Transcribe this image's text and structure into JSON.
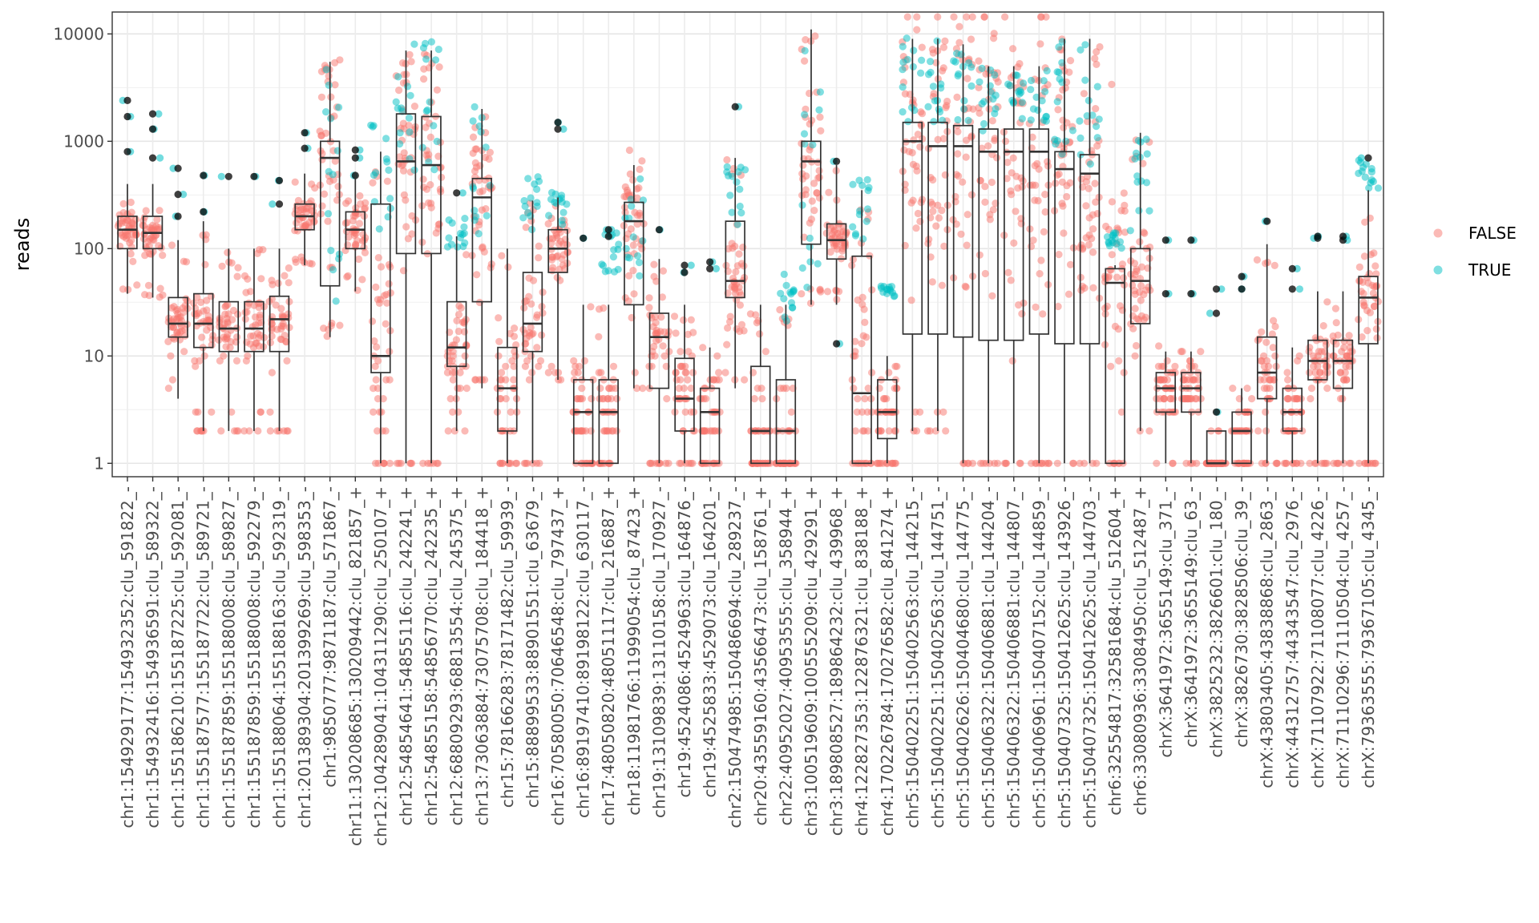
{
  "chart_data": {
    "type": "boxplot-jitter",
    "ylabel": "reads",
    "xlabel": "",
    "yscale": "log10",
    "ylim": [
      0.75,
      16000
    ],
    "yticks": [
      1,
      10,
      100,
      1000,
      10000
    ],
    "ytick_labels": [
      "1",
      "10",
      "100",
      "1000",
      "10000"
    ],
    "legend": {
      "placement": "right",
      "entries": [
        {
          "label": "FALSE",
          "color": "#F8766D"
        },
        {
          "label": "TRUE",
          "color": "#00BFC4"
        }
      ]
    },
    "grid": true,
    "categories": [
      {
        "label": "chr1:154929177:154932352:clu_591822_-",
        "box": [
          100,
          150,
          200,
          38,
          400
        ],
        "true_range": null,
        "outliers_true": [
          800,
          1700,
          2400
        ]
      },
      {
        "label": "chr1:154932416:154936591:clu_589322_-",
        "box": [
          100,
          140,
          200,
          35,
          400
        ],
        "true_range": null,
        "outliers_true": [
          700,
          1300,
          1800
        ]
      },
      {
        "label": "chr1:155186210:155187225:clu_592081_-",
        "box": [
          15,
          20,
          35,
          4,
          120
        ],
        "true_range": null,
        "outliers_true": [
          200,
          320,
          560
        ]
      },
      {
        "label": "chr1:155187577:155187722:clu_589721_-",
        "box": [
          12,
          20,
          38,
          2,
          180
        ],
        "true_range": null,
        "outliers_true": [
          220,
          480
        ]
      },
      {
        "label": "chr1:155187859:155188008:clu_589827_-",
        "box": [
          11,
          18,
          32,
          2,
          100
        ],
        "true_range": null,
        "outliers_true": [
          470
        ]
      },
      {
        "label": "chr1:155187859:155188008:clu_592279_-",
        "box": [
          11,
          18,
          32,
          2,
          100
        ],
        "true_range": null,
        "outliers_true": [
          470
        ]
      },
      {
        "label": "chr1:155188064:155188163:clu_592319_-",
        "box": [
          11,
          22,
          36,
          2,
          100
        ],
        "true_range": null,
        "outliers_true": [
          260,
          430
        ]
      },
      {
        "label": "chr1:201389304:201399269:clu_598353_-",
        "box": [
          150,
          200,
          260,
          70,
          500
        ],
        "true_range": null,
        "outliers_true": [
          860,
          1200
        ]
      },
      {
        "label": "chr1:9850777:9871187:clu_571867_-",
        "box": [
          45,
          700,
          1000,
          15,
          5500
        ],
        "true_range": [
          30,
          6000
        ],
        "outliers_true": []
      },
      {
        "label": "chr11:130208685:130209442:clu_821857_+",
        "box": [
          100,
          150,
          220,
          40,
          520
        ],
        "true_range": null,
        "outliers_true": [
          480,
          700,
          830
        ]
      },
      {
        "label": "chr12:104289041:104311290:clu_250107_+",
        "box": [
          7,
          10,
          260,
          1,
          800
        ],
        "true_range": [
          150,
          1500
        ],
        "outliers_true": []
      },
      {
        "label": "chr12:54854641:54855116:clu_242241_+",
        "box": [
          90,
          650,
          1800,
          1,
          7000
        ],
        "true_range": [
          500,
          10000
        ],
        "outliers_true": []
      },
      {
        "label": "chr12:54855158:54856770:clu_242235_+",
        "box": [
          90,
          600,
          1700,
          1,
          7000
        ],
        "true_range": [
          500,
          10000
        ],
        "outliers_true": []
      },
      {
        "label": "chr12:68809293:68813554:clu_245375_+",
        "box": [
          8,
          12,
          32,
          2,
          130
        ],
        "true_range": [
          100,
          210
        ],
        "outliers_true": [
          330
        ]
      },
      {
        "label": "chr13:73063884:73075708:clu_184418_+",
        "box": [
          32,
          300,
          450,
          5,
          2000
        ],
        "true_range": [
          100,
          2500
        ],
        "outliers_true": []
      },
      {
        "label": "chr15:78166283:78171482:clu_59939_-",
        "box": [
          2,
          5,
          12,
          1,
          100
        ],
        "true_range": null,
        "outliers_true": []
      },
      {
        "label": "chr15:88899533:88901551:clu_63679_-",
        "box": [
          11,
          20,
          60,
          1,
          280
        ],
        "true_range": [
          150,
          500
        ],
        "outliers_true": []
      },
      {
        "label": "chr16:70580050:70646548:clu_797437_+",
        "box": [
          60,
          100,
          150,
          6,
          300
        ],
        "true_range": [
          150,
          350
        ],
        "outliers_true": [
          1300,
          1500
        ]
      },
      {
        "label": "chr16:89197410:89198122:clu_630117_-",
        "box": [
          1,
          3,
          6,
          1,
          30
        ],
        "true_range": null,
        "outliers_true": [
          125
        ]
      },
      {
        "label": "chr17:48050820:48051117:clu_216887_+",
        "box": [
          1,
          3,
          6,
          1,
          30
        ],
        "true_range": [
          60,
          160
        ],
        "outliers_true": [
          130,
          150
        ]
      },
      {
        "label": "chr18:11981766:11999054:clu_87423_+",
        "box": [
          30,
          180,
          270,
          5,
          600
        ],
        "true_range": [
          30,
          600
        ],
        "outliers_true": []
      },
      {
        "label": "chr19:13109839:13110158:clu_170927_-",
        "box": [
          5,
          15,
          25,
          1,
          80
        ],
        "true_range": null,
        "outliers_true": [
          150
        ]
      },
      {
        "label": "chr19:4524086:4524963:clu_164876_-",
        "box": [
          2,
          4,
          9.5,
          1,
          30
        ],
        "true_range": null,
        "outliers_true": [
          60,
          70
        ]
      },
      {
        "label": "chr19:4525833:4529073:clu_164201_-",
        "box": [
          1,
          3,
          5,
          1,
          12
        ],
        "true_range": null,
        "outliers_true": [
          65,
          75
        ]
      },
      {
        "label": "chr2:150474985:150486694:clu_289237_-",
        "box": [
          35,
          50,
          180,
          5,
          700
        ],
        "true_range": [
          150,
          700
        ],
        "outliers_true": [
          2100
        ]
      },
      {
        "label": "chr20:43559160:43566473:clu_158761_+",
        "box": [
          1,
          2,
          8,
          1,
          30
        ],
        "true_range": null,
        "outliers_true": []
      },
      {
        "label": "chr22:40952027:40953555:clu_358944_+",
        "box": [
          1,
          2,
          6,
          1,
          30
        ],
        "true_range": [
          20,
          60
        ],
        "outliers_true": []
      },
      {
        "label": "chr3:100519609:100555209:clu_429291_+",
        "box": [
          110,
          650,
          1000,
          30,
          11000
        ],
        "true_range": [
          30,
          12000
        ],
        "outliers_true": []
      },
      {
        "label": "chr3:189808527:189864232:clu_439968_+",
        "box": [
          80,
          120,
          170,
          30,
          600
        ],
        "true_range": null,
        "outliers_true": [
          13,
          650
        ]
      },
      {
        "label": "chr4:122827353:122876321:clu_838188_+",
        "box": [
          1,
          4.5,
          85,
          1,
          350
        ],
        "true_range": [
          80,
          450
        ],
        "outliers_true": []
      },
      {
        "label": "chr4:170226784:170276582:clu_841274_+",
        "box": [
          1.7,
          3,
          6,
          1,
          10
        ],
        "true_range": [
          35,
          45
        ],
        "outliers_true": []
      },
      {
        "label": "chr5:150402251:150402563:clu_144215_-",
        "box": [
          16,
          1000,
          1500,
          2,
          9000
        ],
        "true_range": [
          1500,
          9500
        ],
        "outliers_true": []
      },
      {
        "label": "chr5:150402251:150402563:clu_144751_-",
        "box": [
          16,
          900,
          1500,
          2,
          9000
        ],
        "true_range": [
          1500,
          9500
        ],
        "outliers_true": []
      },
      {
        "label": "chr5:150402626:150404680:clu_144775_-",
        "box": [
          15,
          900,
          1400,
          1,
          8000
        ],
        "true_range": [
          1500,
          8000
        ],
        "outliers_true": []
      },
      {
        "label": "chr5:150406322:150406881:clu_144204_-",
        "box": [
          14,
          800,
          1300,
          1,
          5000
        ],
        "true_range": [
          1200,
          5000
        ],
        "outliers_true": []
      },
      {
        "label": "chr5:150406322:150406881:clu_144807_-",
        "box": [
          14,
          800,
          1300,
          1,
          5000
        ],
        "true_range": [
          1500,
          4500
        ],
        "outliers_true": []
      },
      {
        "label": "chr5:150406961:150407152:clu_144859_-",
        "box": [
          16,
          800,
          1300,
          1,
          5000
        ],
        "true_range": [
          1500,
          5000
        ],
        "outliers_true": []
      },
      {
        "label": "chr5:150407325:150412625:clu_143926_-",
        "box": [
          13,
          550,
          800,
          1,
          9000
        ],
        "true_range": [
          600,
          9000
        ],
        "outliers_true": []
      },
      {
        "label": "chr5:150407325:150412625:clu_144703_-",
        "box": [
          13,
          500,
          750,
          1,
          9000
        ],
        "true_range": [
          600,
          9000
        ],
        "outliers_true": []
      },
      {
        "label": "chr6:32554817:32581684:clu_512604_+",
        "box": [
          1,
          48,
          65,
          1,
          70
        ],
        "true_range": [
          100,
          140
        ],
        "outliers_true": []
      },
      {
        "label": "chr6:33080936:33084950:clu_512487_+",
        "box": [
          20,
          50,
          100,
          2,
          1200
        ],
        "true_range": [
          100,
          1200
        ],
        "outliers_true": []
      },
      {
        "label": "chrX:3641972:3655149:clu_371_-",
        "box": [
          3,
          5,
          7,
          1,
          11
        ],
        "true_range": null,
        "outliers_true": [
          38,
          120
        ]
      },
      {
        "label": "chrX:3641972:3655149:clu_63_-",
        "box": [
          3,
          5,
          7,
          1,
          11
        ],
        "true_range": null,
        "outliers_true": [
          38,
          120
        ]
      },
      {
        "label": "chrX:3825232:3826601:clu_180_-",
        "box": [
          1,
          1,
          2,
          1,
          2
        ],
        "true_range": null,
        "outliers_true": [
          3,
          25,
          42
        ]
      },
      {
        "label": "chrX:3826730:3828506:clu_39_-",
        "box": [
          1,
          2,
          3,
          1,
          5
        ],
        "true_range": null,
        "outliers_true": [
          42,
          55
        ]
      },
      {
        "label": "chrX:43803405:43838868:clu_2863_-",
        "box": [
          4,
          7,
          15,
          1,
          110
        ],
        "true_range": null,
        "outliers_true": [
          180
        ]
      },
      {
        "label": "chrX:44312757:44343547:clu_2976_-",
        "box": [
          2,
          3,
          5,
          1,
          12
        ],
        "true_range": null,
        "outliers_true": [
          42,
          65
        ]
      },
      {
        "label": "chrX:71107922:71108077:clu_4226_-",
        "box": [
          6,
          9,
          14,
          1,
          40
        ],
        "true_range": null,
        "outliers_true": [
          125,
          130
        ]
      },
      {
        "label": "chrX:71110296:71110504:clu_4257_-",
        "box": [
          5,
          9,
          14,
          1,
          40
        ],
        "true_range": null,
        "outliers_true": [
          120,
          130
        ]
      },
      {
        "label": "chrX:79363555:79367105:clu_4345_-",
        "box": [
          13,
          35,
          55,
          1,
          350
        ],
        "true_range": [
          300,
          700
        ],
        "outliers_true": [
          700
        ]
      }
    ]
  }
}
